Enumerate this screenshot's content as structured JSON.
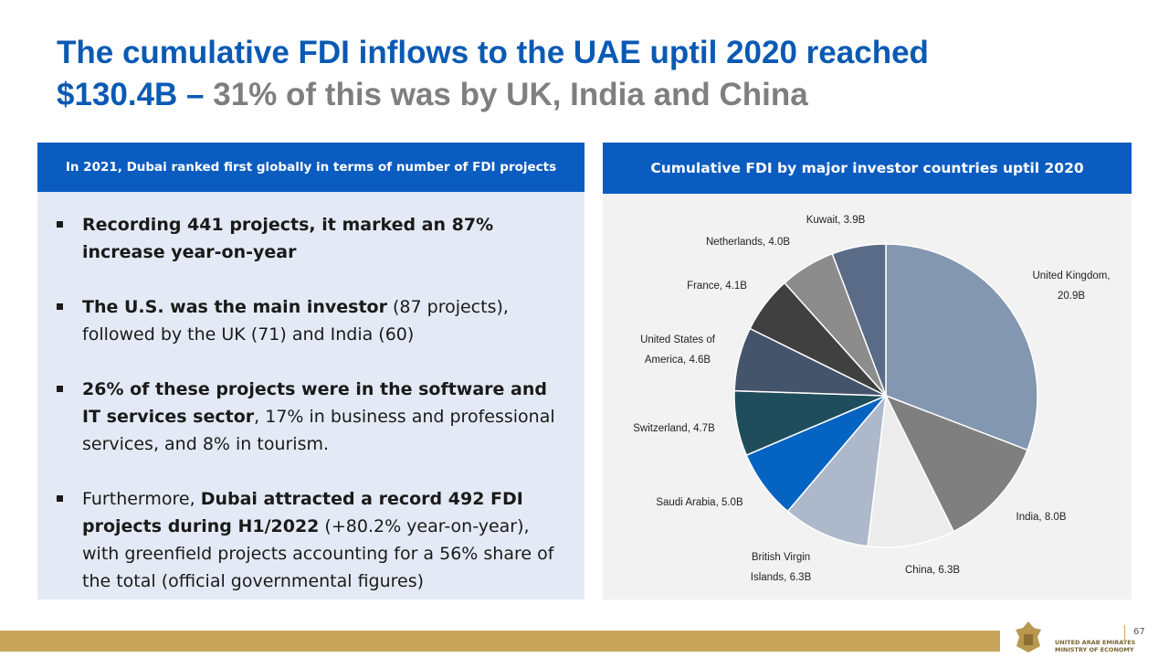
{
  "header": {
    "title_line1": "The cumulative FDI inflows to the UAE uptil 2020 reached",
    "title_line2_blue": "$130.4B –",
    "title_line2_gray": " 31% of this was by UK, India and China"
  },
  "left_panel": {
    "heading": "In 2021, Dubai ranked first globally in terms of number of FDI projects",
    "bullets": [
      [
        {
          "text": "Recording 441 projects, it marked an 87% increase year-on-year",
          "bold": true
        }
      ],
      [
        {
          "text": "The U.S. was the main investor",
          "bold": true
        },
        {
          "text": " (87 projects), followed by the UK (71) and India (60)",
          "bold": false
        }
      ],
      [
        {
          "text": "26% of these projects were in the software and IT services sector",
          "bold": true
        },
        {
          "text": ", 17% in business and professional services, and 8% in tourism.",
          "bold": false
        }
      ],
      [
        {
          "text": "Furthermore, ",
          "bold": false
        },
        {
          "text": "Dubai attracted a record 492 FDI projects during H1/2022",
          "bold": true
        },
        {
          "text": " (+80.2% year-on-year), with greenfield projects accounting for a 56% share of the total (official governmental figures)",
          "bold": false
        }
      ]
    ]
  },
  "chart_data": {
    "type": "pie",
    "title": "Cumulative  FDI by major investor countries uptil 2020",
    "values": [
      20.9,
      8.0,
      6.3,
      6.3,
      5.0,
      4.7,
      4.6,
      4.1,
      4.0,
      3.9
    ],
    "value_labels": [
      "United Kingdom, 20.9B",
      "India, 8.0B",
      "China, 6.3B",
      "British Virgin Islands, 6.3B",
      "Saudi Arabia, 5.0B",
      "Switzerland, 4.7B",
      "United States of America, 4.6B",
      "France, 4.1B",
      "Netherlands, 4.0B",
      "Kuwait, 3.9B"
    ],
    "colors": [
      "#8497b0",
      "#7f7f7f",
      "#ececec",
      "#adb9ca",
      "#0563c1",
      "#204d5c",
      "#44546a",
      "#404040",
      "#8c8c8c",
      "#5a6b87"
    ]
  },
  "footer": {
    "org_line1": "UNITED ARAB EMIRATES",
    "org_line2": "MINISTRY OF ECONOMY",
    "page_number": "67"
  }
}
